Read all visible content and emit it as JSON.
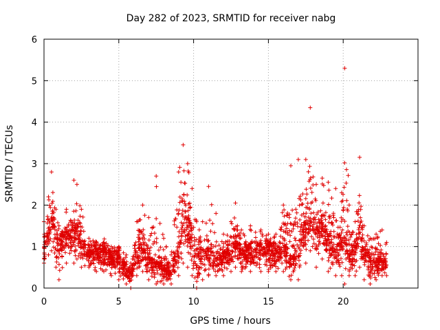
{
  "chart_data": {
    "type": "scatter",
    "title": "Day 282 of 2023, SRMTID for receiver nabg",
    "xlabel": "GPS time / hours",
    "ylabel": "SRMTID / TECUs",
    "xlim": [
      0,
      25
    ],
    "ylim": [
      0,
      6
    ],
    "xticks": [
      0,
      5,
      10,
      15,
      20
    ],
    "yticks": [
      0,
      1,
      2,
      3,
      4,
      5,
      6
    ],
    "grid": true,
    "marker": "plus",
    "color": "#e00000",
    "series": [
      {
        "name": "SRMTID",
        "envelope_hours": [
          0.0,
          0.3,
          0.5,
          0.8,
          1.0,
          1.5,
          2.0,
          2.2,
          2.5,
          3.0,
          3.5,
          4.0,
          4.5,
          5.0,
          5.5,
          5.8,
          6.2,
          6.6,
          7.0,
          7.5,
          8.0,
          8.5,
          9.0,
          9.3,
          9.6,
          9.9,
          10.2,
          10.6,
          11.0,
          11.5,
          12.0,
          12.5,
          12.8,
          13.2,
          13.8,
          14.5,
          15.0,
          15.5,
          16.0,
          16.5,
          17.0,
          17.5,
          17.8,
          18.2,
          18.6,
          19.0,
          19.5,
          19.9,
          20.1,
          20.4,
          20.8,
          21.1,
          21.4,
          21.8,
          22.2,
          22.6,
          22.9
        ],
        "envelope_typical": [
          0.9,
          1.3,
          1.6,
          1.1,
          0.9,
          1.1,
          1.3,
          1.4,
          1.0,
          0.8,
          0.8,
          0.8,
          0.7,
          0.6,
          0.4,
          0.3,
          0.8,
          0.9,
          0.6,
          0.5,
          0.4,
          0.3,
          0.9,
          1.6,
          1.4,
          1.0,
          0.6,
          0.7,
          0.8,
          0.7,
          0.7,
          0.8,
          1.0,
          0.8,
          0.8,
          0.8,
          0.9,
          0.8,
          1.0,
          0.6,
          0.7,
          1.5,
          1.6,
          1.2,
          1.4,
          1.0,
          0.8,
          1.1,
          0.9,
          0.7,
          0.8,
          1.5,
          0.8,
          0.6,
          0.6,
          0.6,
          0.5
        ],
        "envelope_max": [
          1.6,
          2.2,
          2.8,
          1.9,
          1.5,
          1.9,
          2.6,
          2.5,
          1.9,
          1.2,
          1.1,
          1.1,
          1.0,
          1.0,
          0.8,
          0.6,
          1.6,
          2.0,
          1.7,
          2.7,
          1.2,
          0.8,
          2.8,
          3.45,
          3.0,
          2.4,
          1.6,
          1.6,
          2.45,
          1.8,
          1.3,
          1.6,
          2.05,
          1.4,
          1.5,
          1.4,
          1.3,
          1.3,
          2.0,
          2.95,
          3.1,
          3.1,
          4.35,
          2.5,
          2.65,
          2.55,
          2.4,
          2.3,
          5.3,
          2.0,
          1.6,
          3.15,
          1.5,
          1.2,
          1.3,
          1.4,
          1.1
        ],
        "envelope_min": [
          0.6,
          0.8,
          0.9,
          0.5,
          0.2,
          0.6,
          0.6,
          0.7,
          0.5,
          0.5,
          0.4,
          0.4,
          0.3,
          0.2,
          0.1,
          0.0,
          0.3,
          0.4,
          0.2,
          0.1,
          0.1,
          0.1,
          0.3,
          0.6,
          0.5,
          0.3,
          0.0,
          0.2,
          0.3,
          0.3,
          0.3,
          0.4,
          0.5,
          0.4,
          0.4,
          0.4,
          0.4,
          0.4,
          0.4,
          0.2,
          0.2,
          0.6,
          0.9,
          0.5,
          0.7,
          0.4,
          0.3,
          0.3,
          0.1,
          0.3,
          0.3,
          0.5,
          0.2,
          0.1,
          0.2,
          0.3,
          0.3
        ]
      }
    ]
  }
}
